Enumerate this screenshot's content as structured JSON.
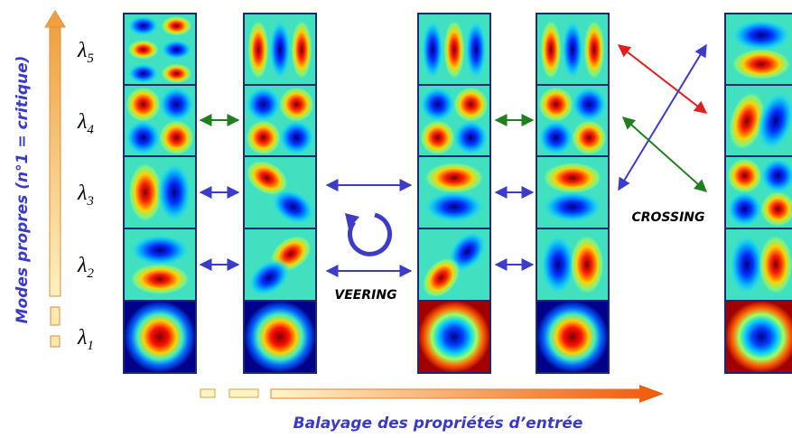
{
  "axis_labels": {
    "vertical": "Modes propres (n°1 = critique)",
    "horizontal": "Balayage des propriétés d’entrée"
  },
  "eigenvalues": {
    "symbol": "λ",
    "indices": [
      "5",
      "4",
      "3",
      "2",
      "1"
    ]
  },
  "annotations": {
    "veering": "VEERING",
    "crossing": "CROSSING"
  }
}
